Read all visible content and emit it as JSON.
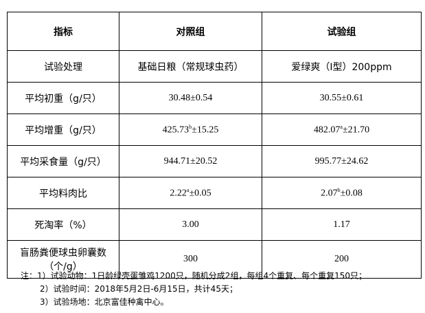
{
  "header": [
    "指标",
    "对照组",
    "试验组"
  ],
  "rows": [
    {
      "label": "试验处理",
      "c1": {
        "base": "基础日粮（常规球虫药）"
      },
      "c2": {
        "base": "爱绿爽（Ⅰ型）200ppm"
      }
    },
    {
      "label": "平均初重（g/只）",
      "c1": {
        "base": "30.48±0.54"
      },
      "c2": {
        "base": "30.55±0.61"
      }
    },
    {
      "label": "平均增重（g/只）",
      "c1": {
        "base": "425.73",
        "sup": "b",
        "rest": "±15.25"
      },
      "c2": {
        "base": "482.07",
        "sup": "a",
        "rest": "±21.70"
      }
    },
    {
      "label": "平均采食量（g/只）",
      "c1": {
        "base": "944.71±20.52"
      },
      "c2": {
        "base": "995.77±24.62"
      }
    },
    {
      "label": "平均料肉比",
      "c1": {
        "base": "2.22",
        "sup": "a",
        "rest": "±0.05"
      },
      "c2": {
        "base": "2.07",
        "sup": "b",
        "rest": "±0.08"
      }
    },
    {
      "label": "死淘率（%）",
      "c1": {
        "base": "3.00"
      },
      "c2": {
        "base": "1.17"
      }
    },
    {
      "label": "盲肠粪便球虫卵囊数（个/g）",
      "c1": {
        "base": "300"
      },
      "c2": {
        "base": "200"
      }
    }
  ],
  "notes": [
    "注：1）试验动物：1日龄绿壳蛋雏鸡1200只，随机分成2组，每组4个重复、每个重复150只；",
    "2）试验时间：2018年5月2日-6月15日，共计45天；",
    "3）试验场地：北京富佳种禽中心。"
  ]
}
